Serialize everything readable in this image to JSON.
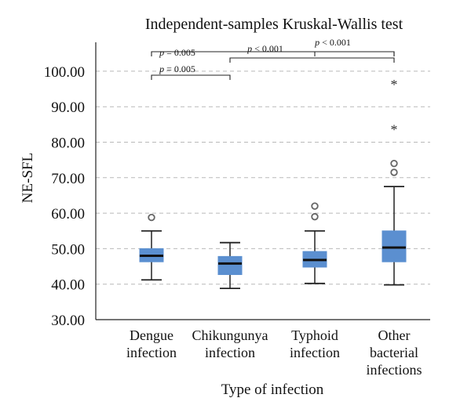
{
  "chart_data": {
    "type": "box",
    "title": "Independent-samples Kruskal-Wallis test",
    "xlabel": "Type of infection",
    "ylabel": "NE-SFL",
    "ylim": [
      30,
      105
    ],
    "yticks": [
      "30.00",
      "40.00",
      "50.00",
      "60.00",
      "70.00",
      "80.00",
      "90.00",
      "100.00"
    ],
    "grid": true,
    "box_color": "#5b8fd0",
    "categories": [
      {
        "lines": [
          "Dengue",
          "infection"
        ],
        "min": 41.2,
        "q1": 46.3,
        "median": 48.0,
        "q3": 50.0,
        "max": 55.0,
        "outliers": [
          58.8
        ],
        "extremes": []
      },
      {
        "lines": [
          "Chikungunya",
          "infection"
        ],
        "min": 38.8,
        "q1": 42.7,
        "median": 45.8,
        "q3": 47.8,
        "max": 51.7,
        "outliers": [],
        "extremes": []
      },
      {
        "lines": [
          "Typhoid",
          "infection"
        ],
        "min": 40.2,
        "q1": 44.8,
        "median": 46.8,
        "q3": 49.2,
        "max": 55.0,
        "outliers": [
          59.0,
          62.0
        ],
        "extremes": []
      },
      {
        "lines": [
          "Other",
          "bacterial",
          "infections"
        ],
        "min": 39.8,
        "q1": 46.3,
        "median": 50.3,
        "q3": 55.0,
        "max": 67.5,
        "outliers": [
          71.5,
          74.0
        ],
        "extremes": [
          83.7,
          96.5
        ]
      }
    ],
    "comparisons": [
      {
        "from": 0,
        "to": 3,
        "label": "p = 0.005"
      },
      {
        "from": 0,
        "to": 1,
        "label": "p = 0.005"
      },
      {
        "from": 1,
        "to": 3,
        "label": "p < 0.001"
      },
      {
        "from": 2,
        "to": 3,
        "label": "p < 0.001"
      }
    ]
  }
}
